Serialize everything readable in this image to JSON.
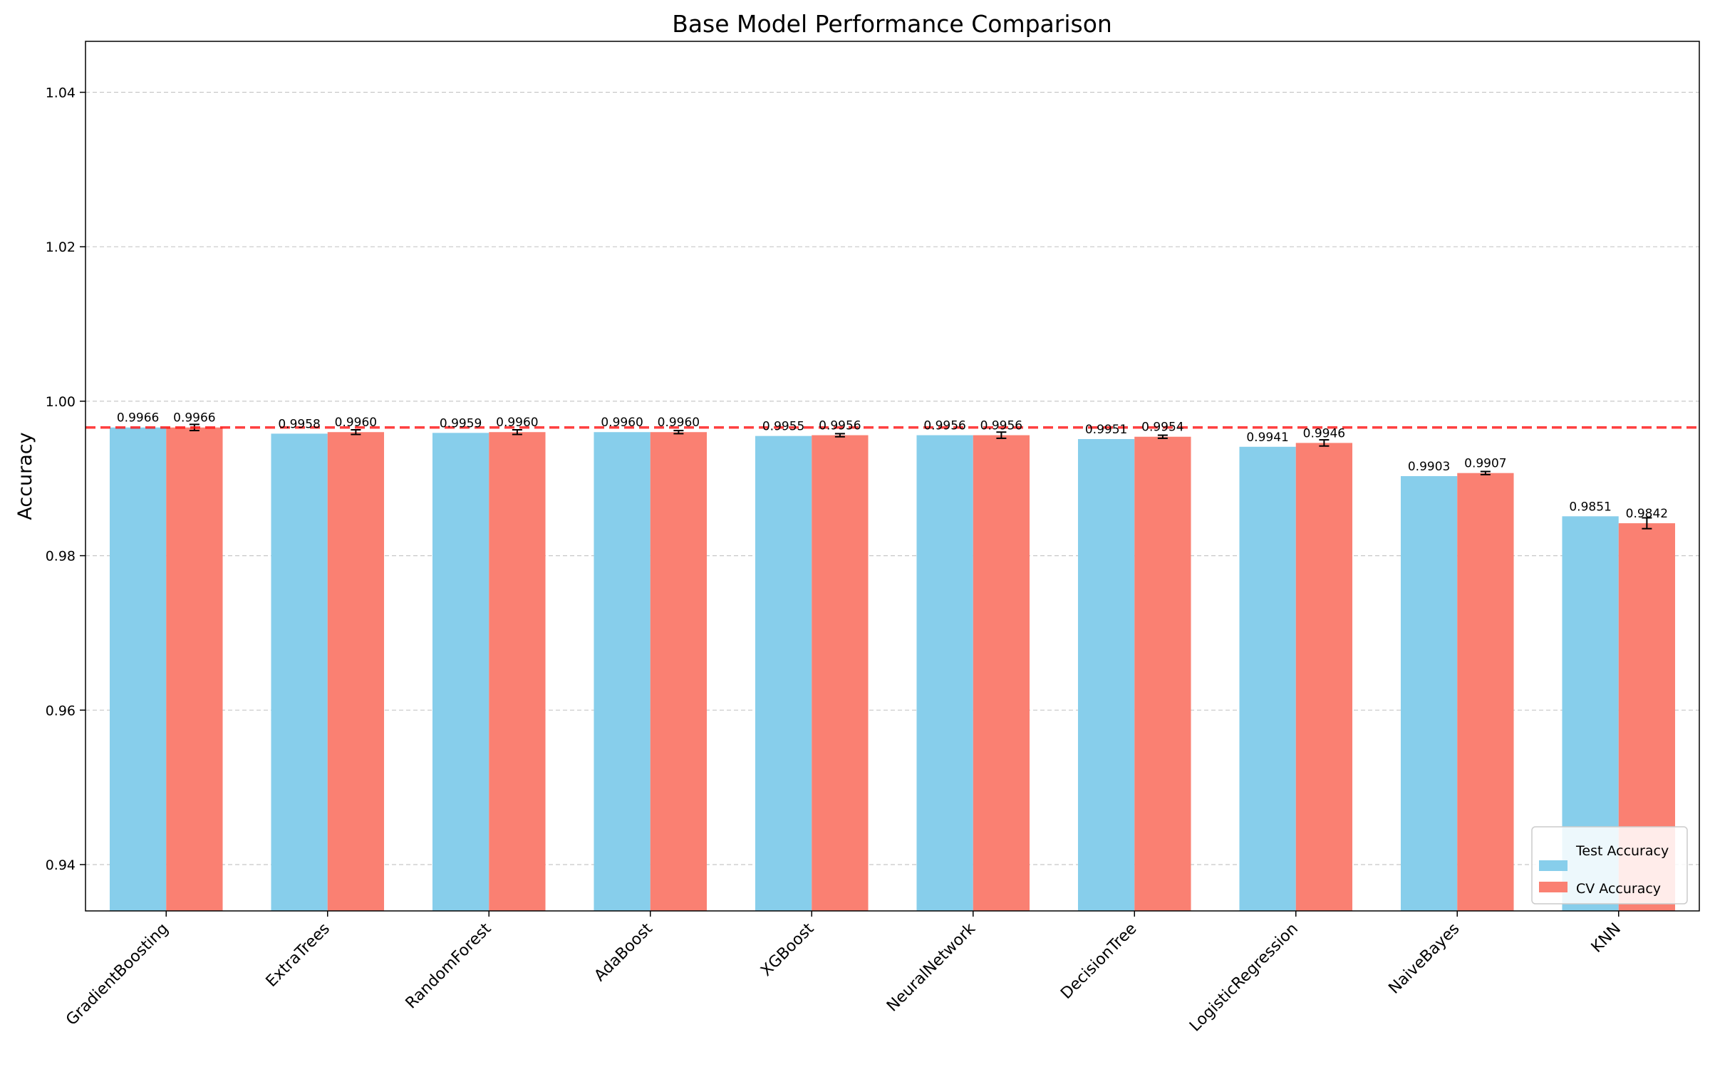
{
  "chart_data": {
    "type": "bar",
    "title": "Base Model Performance Comparison",
    "xlabel": "",
    "ylabel": "Accuracy",
    "categories": [
      "GradientBoosting",
      "ExtraTrees",
      "RandomForest",
      "AdaBoost",
      "XGBoost",
      "NeuralNetwork",
      "DecisionTree",
      "LogisticRegression",
      "NaiveBayes",
      "KNN"
    ],
    "series": [
      {
        "name": "Test Accuracy",
        "color": "#87ceeb",
        "values": [
          0.9966,
          0.9958,
          0.9959,
          0.996,
          0.9955,
          0.9956,
          0.9951,
          0.9941,
          0.9903,
          0.9851
        ],
        "labels": [
          "0.9966",
          "0.9958",
          "0.9959",
          "0.9960",
          "0.9955",
          "0.9956",
          "0.9951",
          "0.9941",
          "0.9903",
          "0.9851"
        ]
      },
      {
        "name": "CV Accuracy",
        "color": "#fa8072",
        "values": [
          0.9966,
          0.996,
          0.996,
          0.996,
          0.9956,
          0.9956,
          0.9954,
          0.9946,
          0.9907,
          0.9842
        ],
        "labels": [
          "0.9966",
          "0.9960",
          "0.9960",
          "0.9960",
          "0.9956",
          "0.9956",
          "0.9954",
          "0.9946",
          "0.9907",
          "0.9842"
        ],
        "errors": [
          0.0004,
          0.0003,
          0.0003,
          0.0002,
          0.0002,
          0.0004,
          0.0002,
          0.0004,
          0.0002,
          0.0007
        ]
      }
    ],
    "reference_line": {
      "value": 0.9966,
      "color": "#ff0000",
      "style": "dashed"
    },
    "ylim": [
      0.934,
      1.0466
    ],
    "yticks": [
      0.94,
      0.96,
      0.98,
      1.0,
      1.02,
      1.04
    ],
    "ytick_labels": [
      "0.94",
      "0.96",
      "0.98",
      "1.00",
      "1.02",
      "1.04"
    ],
    "grid": "y-dashed",
    "legend_position": "lower-right"
  }
}
